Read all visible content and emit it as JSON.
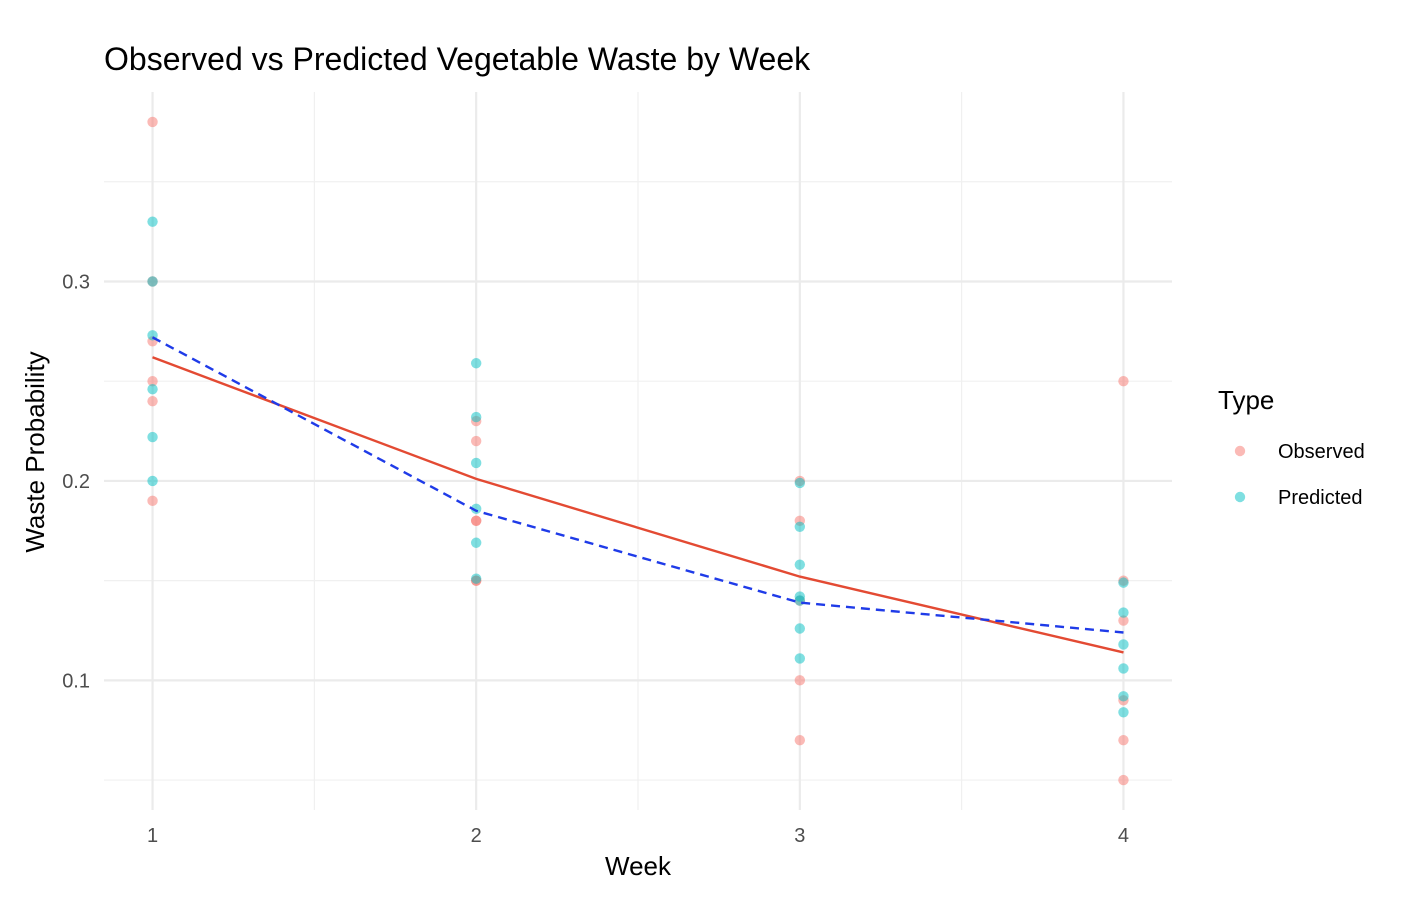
{
  "chart_data": {
    "type": "scatter",
    "title": "Observed vs Predicted Vegetable Waste by Week",
    "xlabel": "Week",
    "ylabel": "Waste Probability",
    "x_ticks": [
      1,
      2,
      3,
      4
    ],
    "y_ticks": [
      0.1,
      0.2,
      0.3
    ],
    "y_tick_labels": [
      "0.1",
      "0.2",
      "0.3"
    ],
    "xlim": [
      0.85,
      4.15
    ],
    "ylim": [
      0.035,
      0.395
    ],
    "grid": true,
    "legend": {
      "title": "Type",
      "placement": "right",
      "entries": [
        "Observed",
        "Predicted"
      ]
    },
    "series": [
      {
        "name": "Observed",
        "color": "#F8766D",
        "points": [
          {
            "x": 1,
            "y": 0.38
          },
          {
            "x": 1,
            "y": 0.3
          },
          {
            "x": 1,
            "y": 0.27
          },
          {
            "x": 1,
            "y": 0.25
          },
          {
            "x": 1,
            "y": 0.24
          },
          {
            "x": 1,
            "y": 0.19
          },
          {
            "x": 2,
            "y": 0.23
          },
          {
            "x": 2,
            "y": 0.22
          },
          {
            "x": 2,
            "y": 0.18
          },
          {
            "x": 2,
            "y": 0.18
          },
          {
            "x": 2,
            "y": 0.15
          },
          {
            "x": 2,
            "y": 0.15
          },
          {
            "x": 3,
            "y": 0.2
          },
          {
            "x": 3,
            "y": 0.18
          },
          {
            "x": 3,
            "y": 0.14
          },
          {
            "x": 3,
            "y": 0.1
          },
          {
            "x": 3,
            "y": 0.07
          },
          {
            "x": 4,
            "y": 0.25
          },
          {
            "x": 4,
            "y": 0.15
          },
          {
            "x": 4,
            "y": 0.13
          },
          {
            "x": 4,
            "y": 0.09
          },
          {
            "x": 4,
            "y": 0.07
          },
          {
            "x": 4,
            "y": 0.05
          }
        ]
      },
      {
        "name": "Predicted",
        "color": "#00BFC4",
        "points": [
          {
            "x": 1,
            "y": 0.33
          },
          {
            "x": 1,
            "y": 0.3
          },
          {
            "x": 1,
            "y": 0.273
          },
          {
            "x": 1,
            "y": 0.246
          },
          {
            "x": 1,
            "y": 0.222
          },
          {
            "x": 1,
            "y": 0.2
          },
          {
            "x": 2,
            "y": 0.259
          },
          {
            "x": 2,
            "y": 0.232
          },
          {
            "x": 2,
            "y": 0.209
          },
          {
            "x": 2,
            "y": 0.186
          },
          {
            "x": 2,
            "y": 0.169
          },
          {
            "x": 2,
            "y": 0.151
          },
          {
            "x": 3,
            "y": 0.199
          },
          {
            "x": 3,
            "y": 0.177
          },
          {
            "x": 3,
            "y": 0.158
          },
          {
            "x": 3,
            "y": 0.142
          },
          {
            "x": 3,
            "y": 0.14
          },
          {
            "x": 3,
            "y": 0.126
          },
          {
            "x": 3,
            "y": 0.111
          },
          {
            "x": 4,
            "y": 0.149
          },
          {
            "x": 4,
            "y": 0.134
          },
          {
            "x": 4,
            "y": 0.118
          },
          {
            "x": 4,
            "y": 0.106
          },
          {
            "x": 4,
            "y": 0.092
          },
          {
            "x": 4,
            "y": 0.084
          }
        ]
      }
    ],
    "lines": [
      {
        "series": "Observed",
        "color": "#E34A33",
        "style": "solid",
        "points": [
          {
            "x": 1,
            "y": 0.262
          },
          {
            "x": 2,
            "y": 0.201
          },
          {
            "x": 3,
            "y": 0.152
          },
          {
            "x": 4,
            "y": 0.114
          }
        ]
      },
      {
        "series": "Predicted",
        "color": "#1F3BE8",
        "style": "dashed",
        "points": [
          {
            "x": 1,
            "y": 0.272
          },
          {
            "x": 2,
            "y": 0.185
          },
          {
            "x": 3,
            "y": 0.139
          },
          {
            "x": 4,
            "y": 0.124
          }
        ]
      }
    ]
  }
}
